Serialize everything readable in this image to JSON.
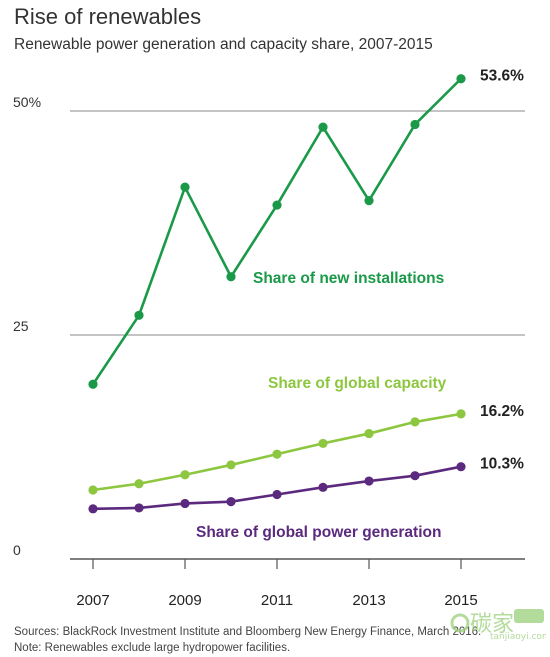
{
  "header": {
    "title": "Rise of renewables",
    "subtitle": "Renewable power generation and capacity share, 2007-2015"
  },
  "footer": {
    "sources": "Sources: BlackRock Investment Institute and Bloomberg New Energy Finance, March 2016.",
    "note": "Note: Renewables exclude large hydropower facilities."
  },
  "watermark": {
    "logo_text": "碳家",
    "site": "tanjiaoyi.com"
  },
  "colors": {
    "new_installations": "#1a9a48",
    "global_capacity": "#8dc63f",
    "power_generation": "#5b2a7e",
    "axis": "#555555",
    "grid": "#888888"
  },
  "chart_data": {
    "type": "line",
    "title": "Rise of renewables",
    "subtitle": "Renewable power generation and capacity share, 2007-2015",
    "xlabel": "",
    "ylabel": "",
    "x": [
      2007,
      2008,
      2009,
      2010,
      2011,
      2012,
      2013,
      2014,
      2015
    ],
    "x_ticks": [
      "2007",
      "2009",
      "2011",
      "2013",
      "2015"
    ],
    "y_ticks": [
      "0",
      "25",
      "50%"
    ],
    "y_tick_values": [
      0,
      25,
      50
    ],
    "ylim": [
      0,
      56
    ],
    "grid": "horizontal",
    "series": [
      {
        "name": "Share of new installations",
        "color": "#1a9a48",
        "values": [
          19.5,
          27.2,
          41.5,
          31.5,
          39.5,
          48.2,
          40.0,
          48.5,
          53.6
        ],
        "end_label": "53.6%"
      },
      {
        "name": "Share of global capacity",
        "color": "#8dc63f",
        "values": [
          7.7,
          8.4,
          9.4,
          10.5,
          11.7,
          12.9,
          14.0,
          15.3,
          16.2
        ],
        "end_label": "16.2%"
      },
      {
        "name": "Share of global power generation",
        "color": "#5b2a7e",
        "values": [
          5.6,
          5.7,
          6.2,
          6.4,
          7.2,
          8.0,
          8.7,
          9.3,
          10.3
        ],
        "end_label": "10.3%"
      }
    ]
  }
}
